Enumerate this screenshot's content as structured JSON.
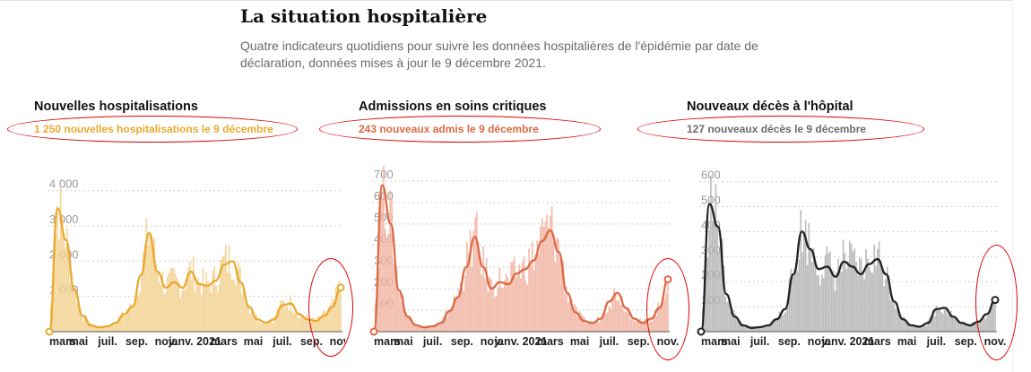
{
  "header": {
    "title": "La situation hospitalière",
    "subtitle": "Quatre indicateurs quotidiens pour suivre les données hospitalières de l'épidémie par date de déclaration, données mises à jour le 9 décembre 2021."
  },
  "panels": [
    {
      "title": "Nouvelles hospitalisations",
      "subtitle": "1 250 nouvelles hospitalisations le 9 décembre",
      "color": "#e9a92f"
    },
    {
      "title": "Admissions en soins critiques",
      "subtitle": "243 nouveaux admis le 9 décembre",
      "color": "#dc6a44"
    },
    {
      "title": "Nouveaux décès à l'hôpital",
      "subtitle": "127 nouveaux décès le 9 décembre",
      "color": "#666666"
    }
  ],
  "chart_data": [
    {
      "type": "area",
      "title": "Nouvelles hospitalisations",
      "x_ticks": [
        "mars",
        "mai",
        "juil.",
        "sep.",
        "nov.",
        "janv. 2021",
        "mars",
        "mai",
        "juil.",
        "sep.",
        "nov."
      ],
      "y_ticks": [
        1000,
        2000,
        3000,
        4000
      ],
      "ylim": [
        0,
        4400
      ],
      "grid": true,
      "fill_color": "#f3d18e",
      "line_color": "#e9a92f",
      "series": [
        {
          "values": [
            0,
            3500,
            2600,
            1200,
            450,
            180,
            120,
            150,
            250,
            500,
            700,
            1600,
            2800,
            1700,
            1250,
            1400,
            1250,
            1700,
            1350,
            1300,
            1450,
            1900,
            2000,
            1400,
            700,
            350,
            250,
            350,
            750,
            800,
            500,
            350,
            300,
            450,
            700,
            1250
          ]
        }
      ]
    },
    {
      "type": "area",
      "title": "Admissions en soins critiques",
      "x_ticks": [
        "mars",
        "mai",
        "juil.",
        "sep.",
        "nov.",
        "janv. 2021",
        "mars",
        "mai",
        "juil.",
        "sep.",
        "nov."
      ],
      "y_ticks": [
        100,
        200,
        300,
        400,
        500,
        600,
        700
      ],
      "ylim": [
        0,
        720
      ],
      "grid": true,
      "fill_color": "#f1b3a1",
      "line_color": "#dc6a44",
      "series": [
        {
          "values": [
            0,
            680,
            500,
            190,
            70,
            30,
            20,
            25,
            40,
            95,
            160,
            300,
            440,
            300,
            200,
            230,
            220,
            270,
            290,
            330,
            420,
            470,
            370,
            180,
            90,
            50,
            40,
            60,
            140,
            180,
            110,
            60,
            40,
            60,
            110,
            243
          ]
        }
      ]
    },
    {
      "type": "area",
      "title": "Nouveaux décès à l'hôpital",
      "x_ticks": [
        "mars",
        "mai",
        "juil.",
        "sep.",
        "nov.",
        "janv. 2021",
        "mars",
        "mai",
        "juil.",
        "sep.",
        "nov."
      ],
      "y_ticks": [
        100,
        200,
        300,
        400,
        500,
        600
      ],
      "ylim": [
        0,
        620
      ],
      "grid": true,
      "fill_color": "#b4b4b4",
      "line_color": "#222222",
      "series": [
        {
          "values": [
            0,
            510,
            420,
            150,
            60,
            25,
            15,
            18,
            25,
            50,
            90,
            230,
            400,
            330,
            250,
            260,
            220,
            280,
            260,
            230,
            270,
            290,
            230,
            120,
            50,
            25,
            20,
            35,
            90,
            95,
            60,
            35,
            25,
            40,
            70,
            127
          ]
        }
      ]
    }
  ]
}
